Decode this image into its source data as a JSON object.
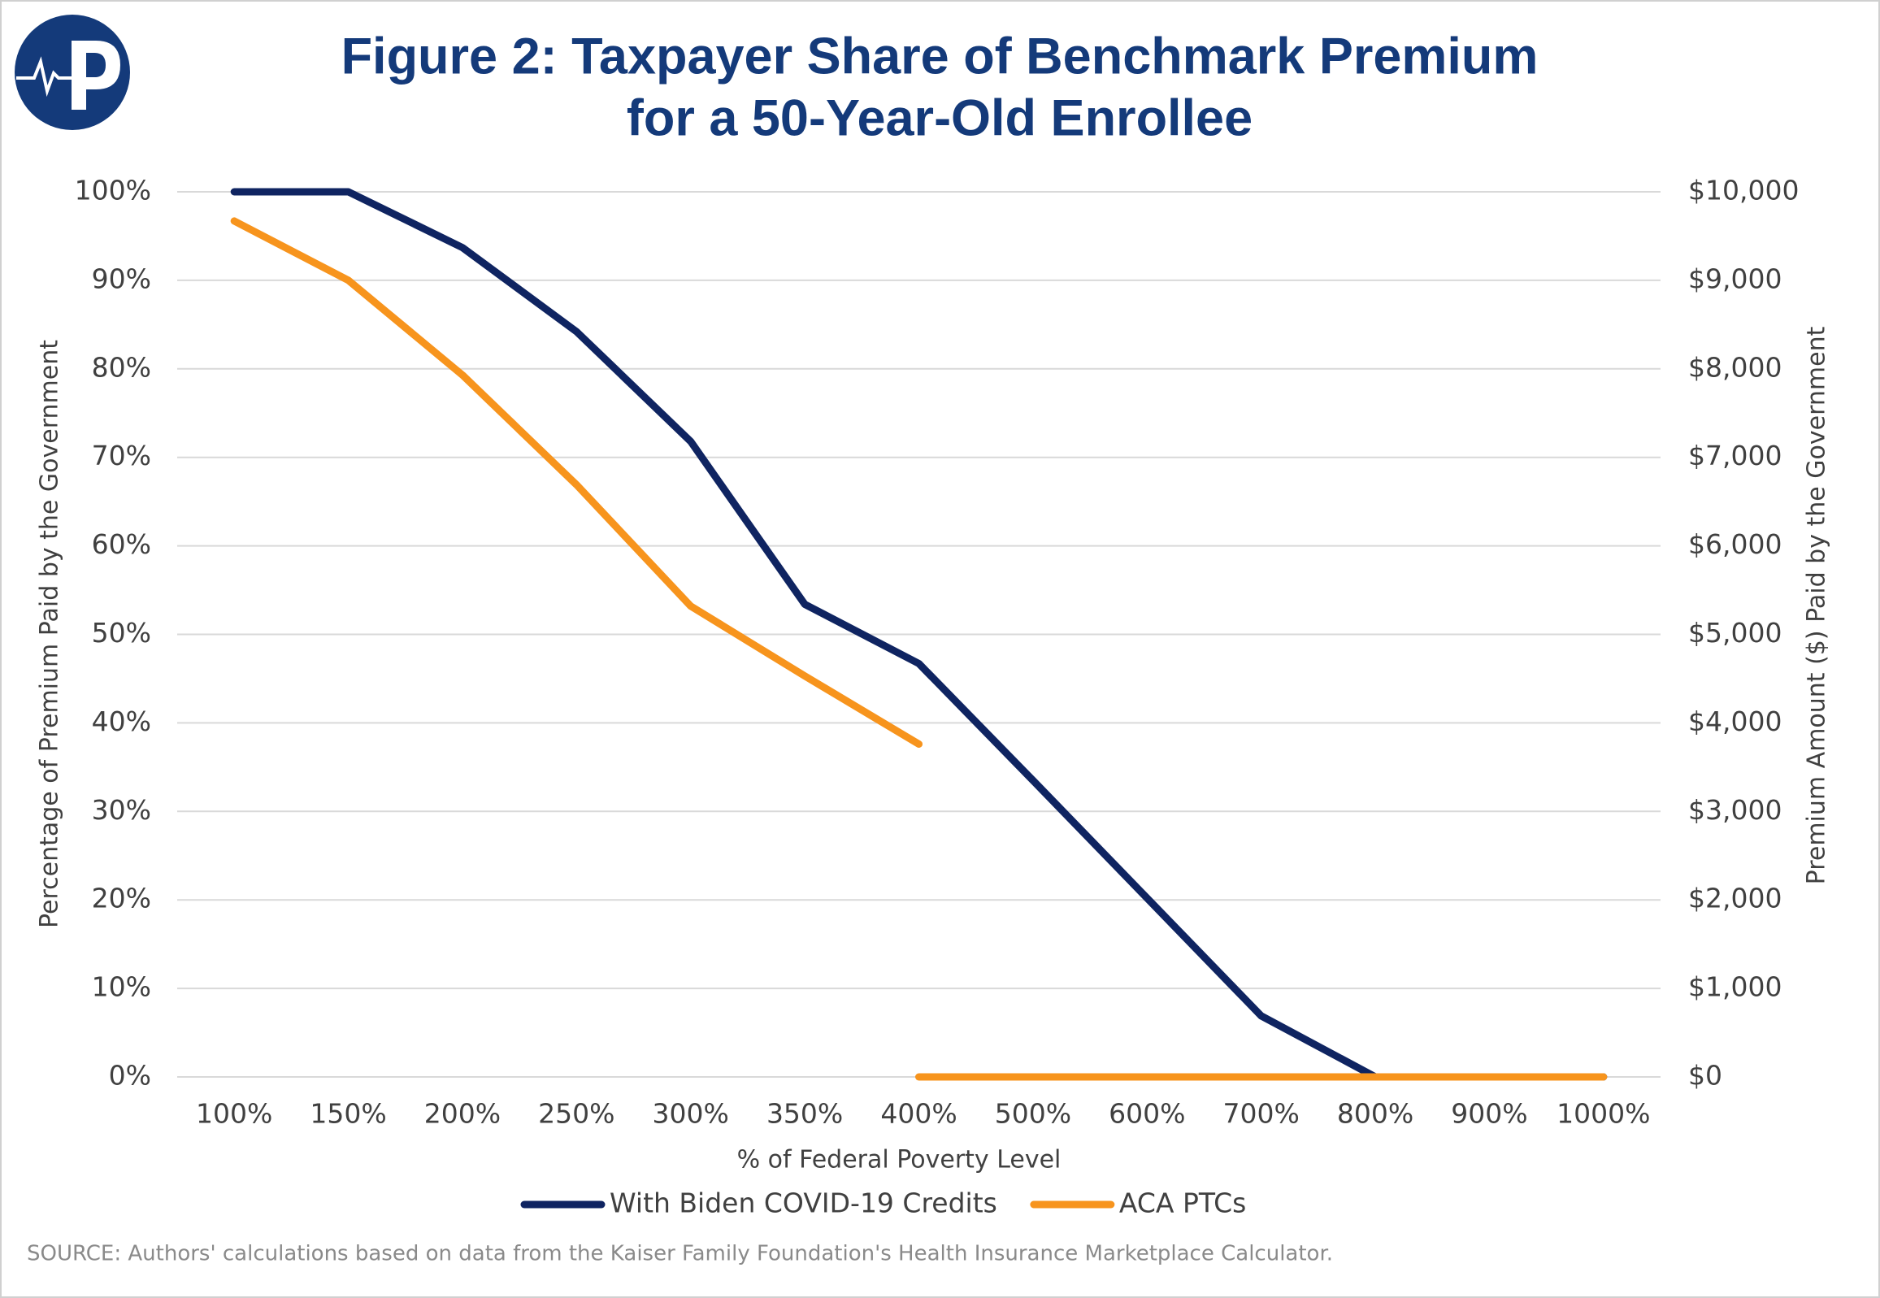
{
  "chart_data": {
    "type": "line",
    "title": [
      "Figure 2: Taxpayer Share of Benchmark Premium",
      "for a 50-Year-Old Enrollee"
    ],
    "x_label": "% of Federal Poverty Level",
    "y_label": "Percentage of Premium Paid by the Government",
    "y2_label": "Premium Amount ($) Paid by the Government",
    "source": "SOURCE: Authors' calculations based on data from the Kaiser Family Foundation's Health Insurance Marketplace Calculator.",
    "categories": [
      "100%",
      "150%",
      "200%",
      "250%",
      "300%",
      "350%",
      "400%",
      "500%",
      "600%",
      "700%",
      "800%",
      "900%",
      "1000%"
    ],
    "series": [
      {
        "name": "With Biden COVID-19 Credits",
        "color": "#0f2461",
        "values": [
          100,
          100,
          93.7,
          84.2,
          71.8,
          53.4,
          46.7,
          33.5,
          20.2,
          6.9,
          0,
          0,
          0
        ]
      },
      {
        "name": "ACA PTCs",
        "color": "#f7941d",
        "values": [
          96.7,
          90,
          79.3,
          66.9,
          53.2,
          45.3,
          37.6,
          null,
          null,
          null,
          null,
          null,
          null
        ]
      },
      {
        "color": "#f7941d",
        "values": [
          null,
          null,
          null,
          null,
          null,
          null,
          0,
          0,
          0,
          0,
          0,
          0,
          0
        ]
      }
    ],
    "ylim": [
      0,
      100
    ],
    "yticks": [
      {
        "value": 0,
        "label": "0%"
      },
      {
        "value": 10,
        "label": "10%"
      },
      {
        "value": 20,
        "label": "20%"
      },
      {
        "value": 30,
        "label": "30%"
      },
      {
        "value": 40,
        "label": "40%"
      },
      {
        "value": 50,
        "label": "50%"
      },
      {
        "value": 60,
        "label": "60%"
      },
      {
        "value": 70,
        "label": "70%"
      },
      {
        "value": 80,
        "label": "80%"
      },
      {
        "value": 90,
        "label": "90%"
      },
      {
        "value": 100,
        "label": "100%"
      }
    ],
    "y2lim": [
      0,
      10000
    ],
    "y2ticks": [
      {
        "value": 0,
        "label": "$0"
      },
      {
        "value": 1000,
        "label": "$1,000"
      },
      {
        "value": 2000,
        "label": "$2,000"
      },
      {
        "value": 3000,
        "label": "$3,000"
      },
      {
        "value": 4000,
        "label": "$4,000"
      },
      {
        "value": 5000,
        "label": "$5,000"
      },
      {
        "value": 6000,
        "label": "$6,000"
      },
      {
        "value": 7000,
        "label": "$7,000"
      },
      {
        "value": 8000,
        "label": "$8,000"
      },
      {
        "value": 9000,
        "label": "$9,000"
      },
      {
        "value": 10000,
        "label": "$10,000"
      }
    ],
    "grid": true
  }
}
